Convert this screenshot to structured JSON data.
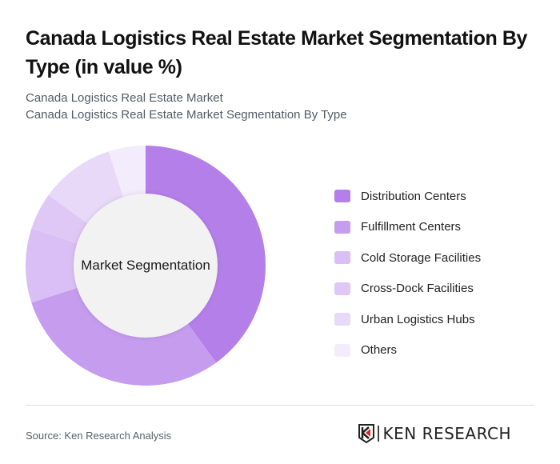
{
  "header": {
    "title": "Canada Logistics Real Estate Market Segmentation By Type (in value %)",
    "subtitle_1": "Canada Logistics Real Estate Market",
    "subtitle_2": "Canada Logistics Real Estate Market Segmentation By Type"
  },
  "chart_center_label": "Market Segmentation",
  "legend": [
    {
      "label": "Distribution Centers",
      "color": "#b57fea"
    },
    {
      "label": "Fulfillment Centers",
      "color": "#c59cee"
    },
    {
      "label": "Cold Storage Facilities",
      "color": "#d9bff5"
    },
    {
      "label": "Cross-Dock Facilities",
      "color": "#dfc8f6"
    },
    {
      "label": "Urban Logistics Hubs",
      "color": "#e8d9f9"
    },
    {
      "label": "Others",
      "color": "#f3ecfc"
    }
  ],
  "footer": {
    "source": "Source: Ken Research Analysis",
    "logo_text": "KEN RESEARCH"
  },
  "chart_data": {
    "type": "pie",
    "variant": "donut",
    "title": "Canada Logistics Real Estate Market Segmentation By Type (in value %)",
    "center_label": "Market Segmentation",
    "categories": [
      "Distribution Centers",
      "Fulfillment Centers",
      "Cold Storage Facilities",
      "Cross-Dock Facilities",
      "Urban Logistics Hubs",
      "Others"
    ],
    "values": [
      40,
      30,
      10,
      5,
      10,
      5
    ],
    "colors": [
      "#b57fea",
      "#c59cee",
      "#d9bff5",
      "#dfc8f6",
      "#e8d9f9",
      "#f3ecfc"
    ],
    "unit": "%",
    "start_angle": "12 o'clock, clockwise",
    "legend_position": "right"
  }
}
